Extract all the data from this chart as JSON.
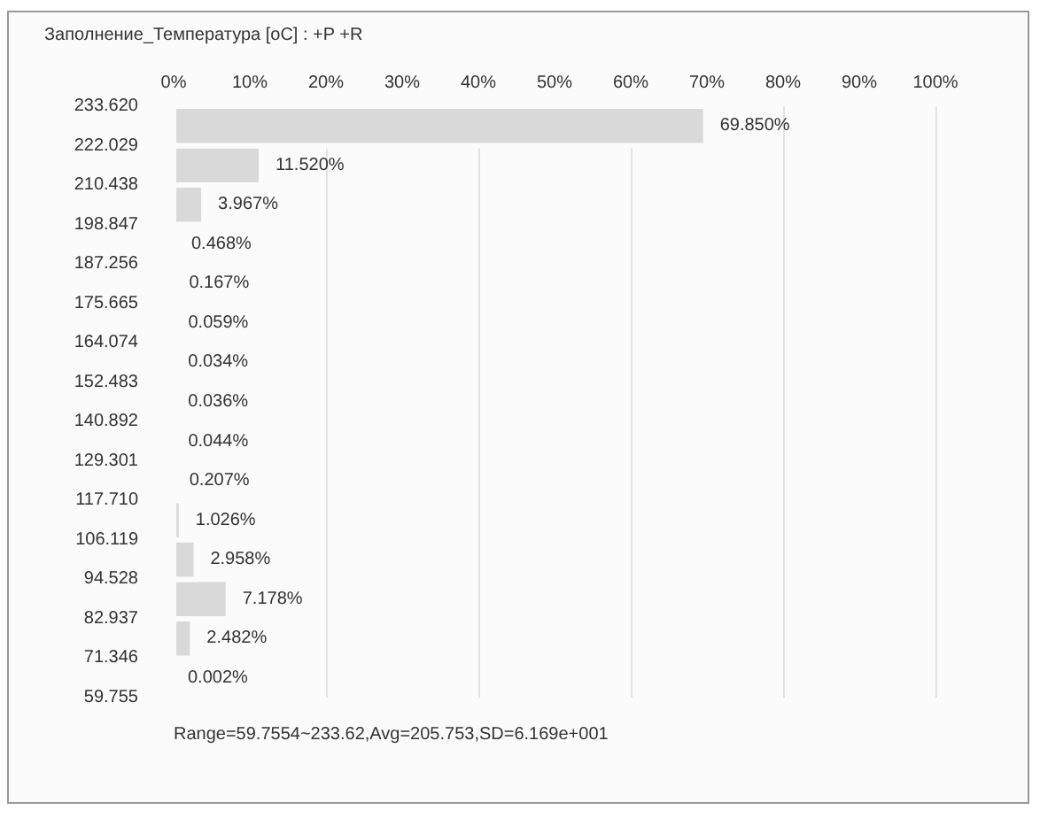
{
  "chart_data": {
    "type": "histogram",
    "orientation": "horizontal",
    "title": "Заполнение_Температура [oC] : +P +R",
    "bins": [
      59.755,
      71.346,
      82.937,
      94.528,
      106.119,
      117.71,
      129.301,
      140.892,
      152.483,
      164.074,
      175.665,
      187.256,
      198.847,
      210.438,
      222.029,
      233.62
    ],
    "values": [
      0.002,
      2.482,
      7.178,
      2.958,
      1.026,
      0.207,
      0.044,
      0.036,
      0.034,
      0.059,
      0.167,
      0.468,
      3.967,
      11.52,
      69.85
    ],
    "value_labels": [
      "0.002%",
      "2.482%",
      "7.178%",
      "2.958%",
      "1.026%",
      "0.207%",
      "0.044%",
      "0.036%",
      "0.034%",
      "0.059%",
      "0.167%",
      "0.468%",
      "3.967%",
      "11.520%",
      "69.850%"
    ],
    "color": "#d9d9d9",
    "xlim": [
      0,
      100
    ],
    "xticks": [
      {
        "value": 0,
        "label": "0%"
      },
      {
        "value": 10,
        "label": "10%"
      },
      {
        "value": 20,
        "label": "20%"
      },
      {
        "value": 30,
        "label": "30%"
      },
      {
        "value": 40,
        "label": "40%"
      },
      {
        "value": 50,
        "label": "50%"
      },
      {
        "value": 60,
        "label": "60%"
      },
      {
        "value": 70,
        "label": "70%"
      },
      {
        "value": 80,
        "label": "80%"
      },
      {
        "value": 90,
        "label": "90%"
      },
      {
        "value": 100,
        "label": "100%"
      }
    ],
    "ylim": [
      59.755,
      233.62
    ],
    "yticks": [
      {
        "value": 59.755,
        "label": "59.755"
      },
      {
        "value": 71.346,
        "label": "71.346"
      },
      {
        "value": 82.937,
        "label": "82.937"
      },
      {
        "value": 94.528,
        "label": "94.528"
      },
      {
        "value": 106.119,
        "label": "106.119"
      },
      {
        "value": 117.71,
        "label": "117.710"
      },
      {
        "value": 129.301,
        "label": "129.301"
      },
      {
        "value": 140.892,
        "label": "140.892"
      },
      {
        "value": 152.483,
        "label": "152.483"
      },
      {
        "value": 164.074,
        "label": "164.074"
      },
      {
        "value": 175.665,
        "label": "175.665"
      },
      {
        "value": 187.256,
        "label": "187.256"
      },
      {
        "value": 198.847,
        "label": "198.847"
      },
      {
        "value": 210.438,
        "label": "210.438"
      },
      {
        "value": 222.029,
        "label": "222.029"
      },
      {
        "value": 233.62,
        "label": "233.620"
      }
    ],
    "grid": "x",
    "annotations": [
      "Range=59.7554~233.62,Avg=205.753,SD=6.169e+001"
    ]
  }
}
